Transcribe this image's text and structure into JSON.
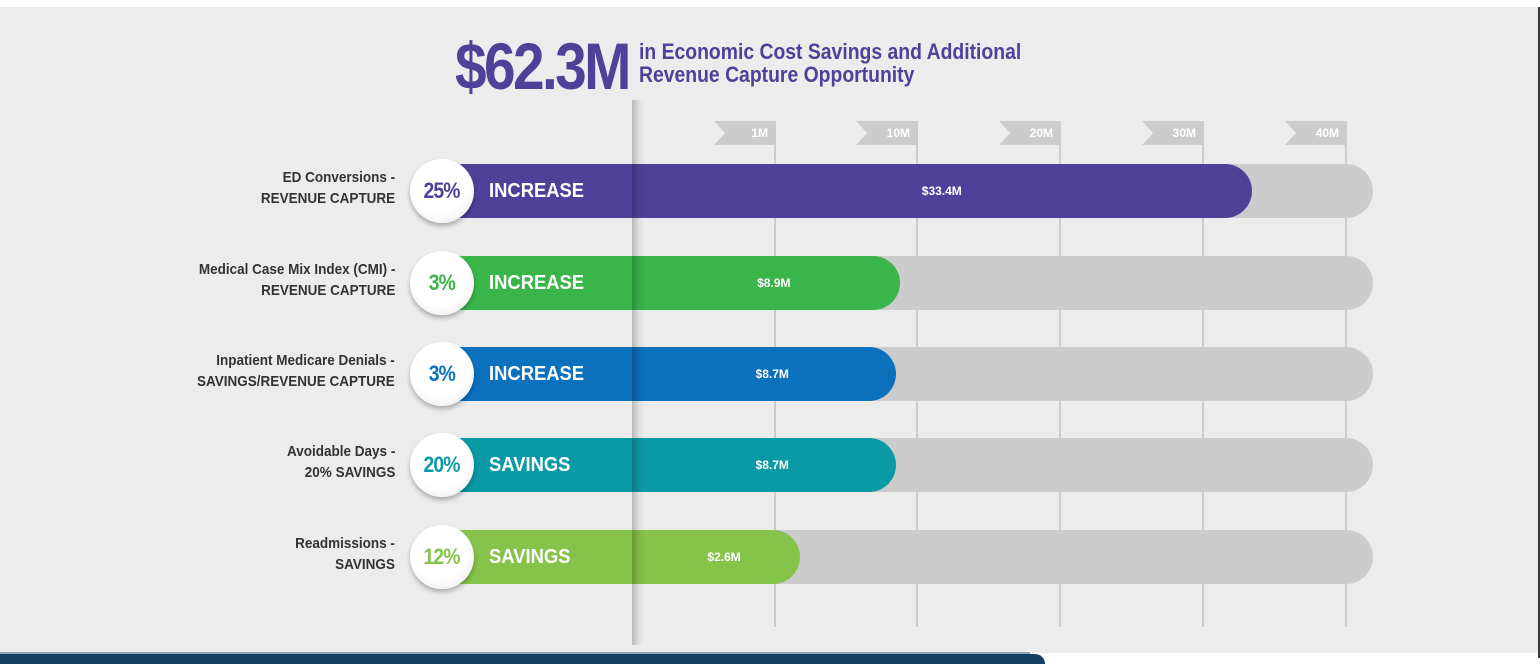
{
  "header": {
    "total_value": "$62.3M",
    "subtitle_line1": "in Economic Cost Savings and Additional",
    "subtitle_line2": "Revenue Capture Opportunity"
  },
  "colors": {
    "title": "#4f4199",
    "track": "#cccccc",
    "background": "#ececec",
    "banner": "#133f63"
  },
  "chart_data": {
    "type": "bar",
    "orientation": "horizontal",
    "title": "$62.3M in Economic Cost Savings and Additional Revenue Capture Opportunity",
    "xlabel": "",
    "ylabel": "",
    "x_ticks": [
      {
        "label": "1M",
        "value": 1
      },
      {
        "label": "10M",
        "value": 10
      },
      {
        "label": "20M",
        "value": 20
      },
      {
        "label": "30M",
        "value": 30
      },
      {
        "label": "40M",
        "value": 40
      }
    ],
    "xlim": [
      1,
      40
    ],
    "grid": true,
    "categories": [
      "ED Conversions - REVENUE CAPTURE",
      "Medical Case Mix Index (CMI) - REVENUE CAPTURE",
      "Inpatient Medicare Denials - SAVINGS/REVENUE CAPTURE",
      "Avoidable Days - 20% SAVINGS",
      "Readmissions - SAVINGS"
    ],
    "values": [
      33.4,
      8.9,
      8.7,
      8.7,
      2.6
    ],
    "units": "$M",
    "rows": [
      {
        "label_line1": "ED Conversions -",
        "label_line2": "REVENUE CAPTURE",
        "percent": "25%",
        "kind": "INCREASE",
        "value": 33.4,
        "value_label": "$33.4M",
        "color": "#4f4199"
      },
      {
        "label_line1": "Medical Case Mix Index (CMI) -",
        "label_line2": "REVENUE CAPTURE",
        "percent": "3%",
        "kind": "INCREASE",
        "value": 8.9,
        "value_label": "$8.9M",
        "color": "#3ab54a"
      },
      {
        "label_line1": "Inpatient Medicare Denials -",
        "label_line2": "SAVINGS/REVENUE CAPTURE",
        "percent": "3%",
        "kind": "INCREASE",
        "value": 8.7,
        "value_label": "$8.7M",
        "color": "#0b71bd"
      },
      {
        "label_line1": "Avoidable Days -",
        "label_line2": "20% SAVINGS",
        "percent": "20%",
        "kind": "SAVINGS",
        "value": 8.7,
        "value_label": "$8.7M",
        "color": "#0a9aa6"
      },
      {
        "label_line1": "Readmissions -",
        "label_line2": "SAVINGS",
        "percent": "12%",
        "kind": "SAVINGS",
        "value": 2.6,
        "value_label": "$2.6M",
        "color": "#86c34a"
      }
    ]
  }
}
